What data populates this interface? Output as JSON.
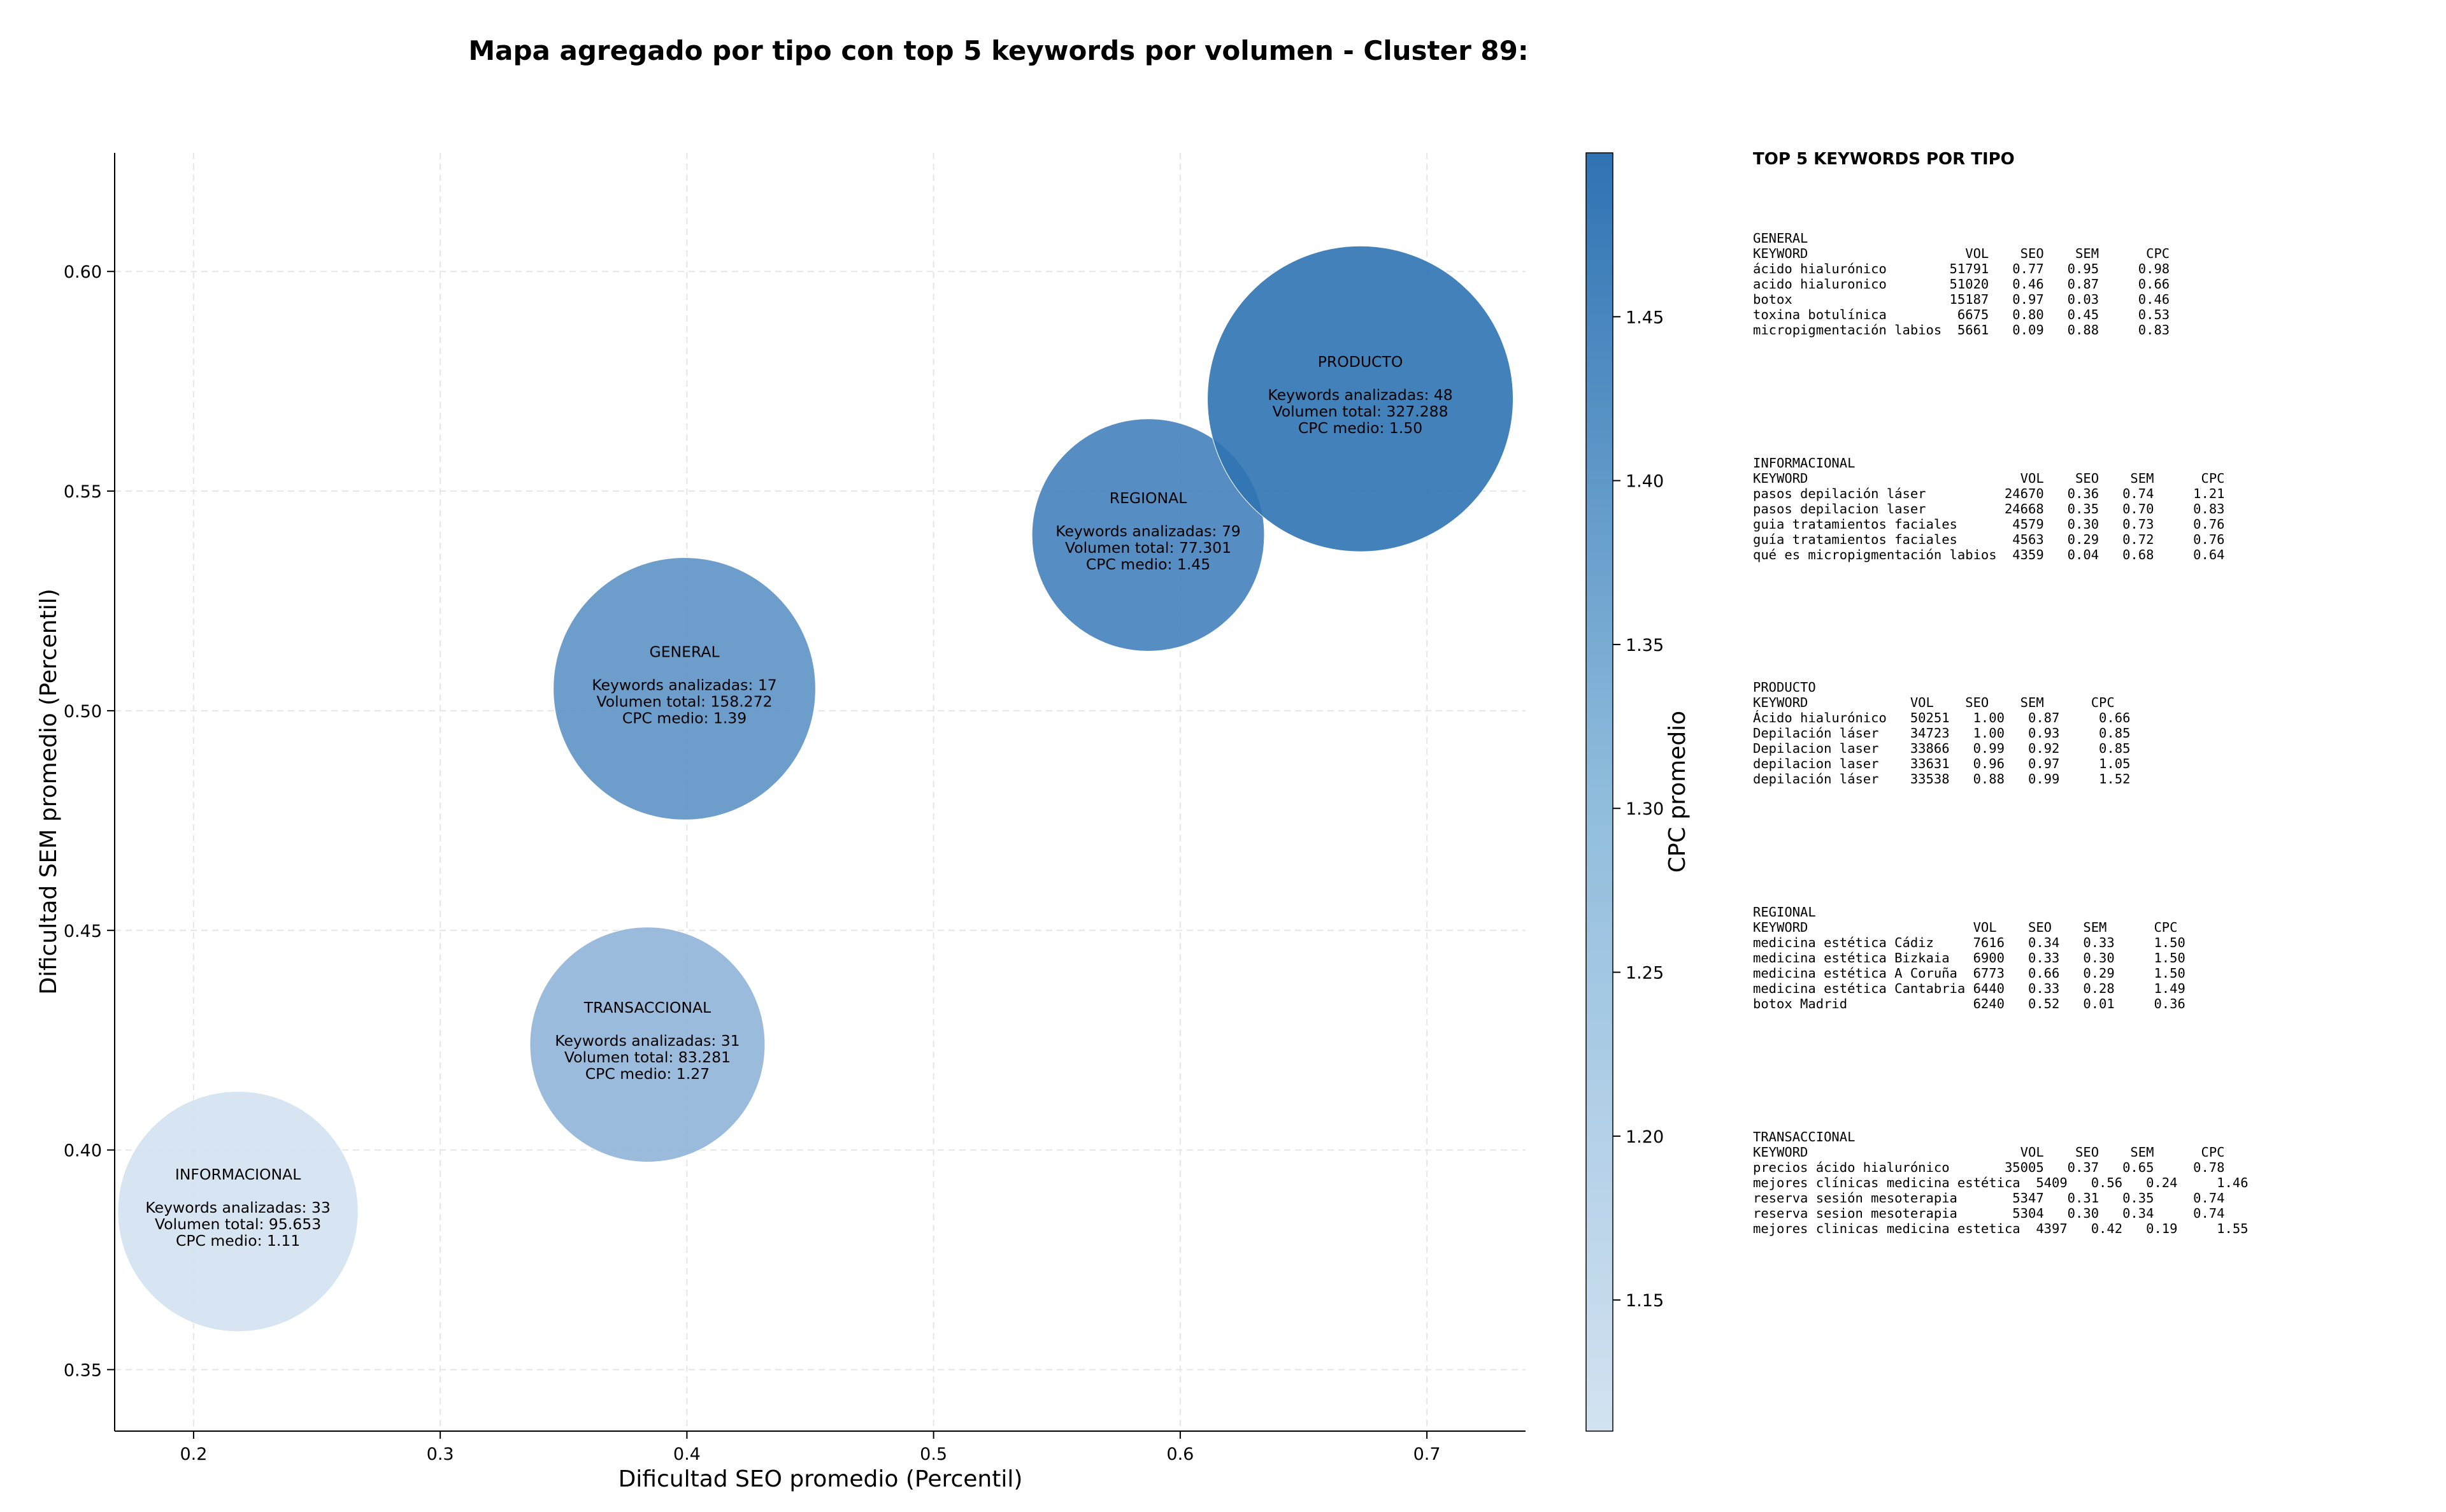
{
  "chart_data": {
    "type": "scatter",
    "title": "Mapa agregado por tipo con top 5 keywords por volumen - Cluster 89:",
    "xlabel": "Dificultad SEO promedio (Percentil)",
    "ylabel": "Dificultad SEM promedio (Percentil)",
    "xlim": [
      0.168,
      0.74
    ],
    "ylim": [
      0.336,
      0.627
    ],
    "xticks": [
      "0.2",
      "0.3",
      "0.4",
      "0.5",
      "0.6",
      "0.7"
    ],
    "yticks": [
      "0.35",
      "0.40",
      "0.45",
      "0.50",
      "0.55",
      "0.60"
    ],
    "grid": true,
    "colorbar": {
      "label": "CPC promedio",
      "range": [
        1.11,
        1.5
      ],
      "ticks": [
        "1.15",
        "1.20",
        "1.25",
        "1.30",
        "1.35",
        "1.40",
        "1.45"
      ],
      "color_low": "#d3e2f1",
      "color_high": "#2f73b3"
    },
    "points": [
      {
        "label": "INFORMACIONAL",
        "x": 0.218,
        "y": 0.386,
        "keywords": 33,
        "volume": 95653,
        "cpc": 1.11,
        "lines": [
          "Keywords analizadas: 33",
          "Volumen total: 95.653",
          "CPC medio: 1.11"
        ]
      },
      {
        "label": "TRANSACCIONAL",
        "x": 0.384,
        "y": 0.424,
        "keywords": 31,
        "volume": 83281,
        "cpc": 1.27,
        "lines": [
          "Keywords analizadas: 31",
          "Volumen total: 83.281",
          "CPC medio: 1.27"
        ]
      },
      {
        "label": "GENERAL",
        "x": 0.399,
        "y": 0.505,
        "keywords": 17,
        "volume": 158272,
        "cpc": 1.39,
        "lines": [
          "Keywords analizadas: 17",
          "Volumen total: 158.272",
          "CPC medio: 1.39"
        ]
      },
      {
        "label": "REGIONAL",
        "x": 0.587,
        "y": 0.54,
        "keywords": 79,
        "volume": 77301,
        "cpc": 1.45,
        "lines": [
          "Keywords analizadas: 79",
          "Volumen total: 77.301",
          "CPC medio: 1.45"
        ]
      },
      {
        "label": "PRODUCTO",
        "x": 0.673,
        "y": 0.571,
        "keywords": 48,
        "volume": 327288,
        "cpc": 1.5,
        "lines": [
          "Keywords analizadas: 48",
          "Volumen total: 327.288",
          "CPC medio: 1.50"
        ]
      }
    ]
  },
  "panel": {
    "title": "TOP 5 KEYWORDS POR TIPO",
    "tables": [
      {
        "name": "GENERAL",
        "rows": [
          "KEYWORD                    VOL    SEO    SEM      CPC",
          "ácido hialurónico        51791   0.77   0.95     0.98",
          "acido hialuronico        51020   0.46   0.87     0.66",
          "botox                    15187   0.97   0.03     0.46",
          "toxina botulínica         6675   0.80   0.45     0.53",
          "micropigmentación labios  5661   0.09   0.88     0.83"
        ]
      },
      {
        "name": "INFORMACIONAL",
        "rows": [
          "KEYWORD                           VOL    SEO    SEM      CPC",
          "pasos depilación láser          24670   0.36   0.74     1.21",
          "pasos depilacion laser          24668   0.35   0.70     0.83",
          "guia tratamientos faciales       4579   0.30   0.73     0.76",
          "guía tratamientos faciales       4563   0.29   0.72     0.76",
          "qué es micropigmentación labios  4359   0.04   0.68     0.64"
        ]
      },
      {
        "name": "PRODUCTO",
        "rows": [
          "KEYWORD             VOL    SEO    SEM      CPC",
          "Ácido hialurónico   50251   1.00   0.87     0.66",
          "Depilación láser    34723   1.00   0.93     0.85",
          "Depilacion laser    33866   0.99   0.92     0.85",
          "depilacion laser    33631   0.96   0.97     1.05",
          "depilación láser    33538   0.88   0.99     1.52"
        ]
      },
      {
        "name": "REGIONAL",
        "rows": [
          "KEYWORD                     VOL    SEO    SEM      CPC",
          "medicina estética Cádiz     7616   0.34   0.33     1.50",
          "medicina estética Bizkaia   6900   0.33   0.30     1.50",
          "medicina estética A Coruña  6773   0.66   0.29     1.50",
          "medicina estética Cantabria 6440   0.33   0.28     1.49",
          "botox Madrid                6240   0.52   0.01     0.36"
        ]
      },
      {
        "name": "TRANSACCIONAL",
        "rows": [
          "KEYWORD                           VOL    SEO    SEM      CPC",
          "precios ácido hialurónico       35005   0.37   0.65     0.78",
          "mejores clínicas medicina estética  5409   0.56   0.24     1.46",
          "reserva sesión mesoterapia       5347   0.31   0.35     0.74",
          "reserva sesion mesoterapia       5304   0.30   0.34     0.74",
          "mejores clinicas medicina estetica  4397   0.42   0.19     1.55"
        ]
      }
    ]
  }
}
